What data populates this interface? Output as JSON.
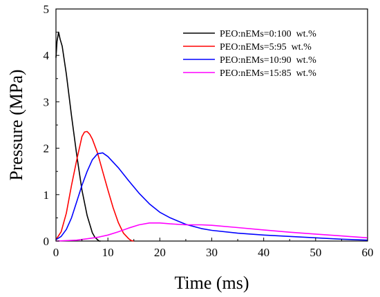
{
  "chart_data": {
    "type": "line",
    "xlabel": "Time (ms)",
    "ylabel": "Pressure (MPa)",
    "xlim": [
      0,
      60
    ],
    "ylim": [
      0,
      5
    ],
    "xticks": [
      0,
      10,
      20,
      30,
      40,
      50,
      60
    ],
    "yticks": [
      0,
      1,
      2,
      3,
      4,
      5
    ],
    "grid": false,
    "legend_position": "top-right",
    "series": [
      {
        "name": "PEO:nEMs=0:100  wt.%",
        "color": "#000000",
        "x": [
          0,
          0.2,
          0.5,
          0.8,
          1.2,
          2,
          3,
          4,
          5,
          6,
          7,
          7.5,
          8,
          8.3,
          8.6
        ],
        "y": [
          3.95,
          4.3,
          4.5,
          4.35,
          4.2,
          3.6,
          2.7,
          1.85,
          1.1,
          0.55,
          0.18,
          0.08,
          0.03,
          0.0,
          0.0
        ]
      },
      {
        "name": "PEO:nEMs=5:95  wt.%",
        "color": "#ff0000",
        "x": [
          0,
          1,
          2,
          3,
          4,
          5,
          5.5,
          6,
          6.5,
          7,
          8,
          9,
          10,
          11,
          12,
          13,
          14,
          14.5,
          15
        ],
        "y": [
          0.03,
          0.2,
          0.6,
          1.2,
          1.75,
          2.25,
          2.35,
          2.36,
          2.3,
          2.2,
          1.9,
          1.5,
          1.1,
          0.72,
          0.4,
          0.17,
          0.05,
          0.01,
          0.0
        ]
      },
      {
        "name": "PEO:nEMs=10:90  wt.%",
        "color": "#0000ff",
        "x": [
          0,
          1,
          2,
          3,
          4,
          5,
          6,
          7,
          8,
          9,
          10,
          12,
          14,
          16,
          18,
          20,
          22,
          25,
          28,
          30,
          35,
          40,
          45,
          50,
          55,
          60
        ],
        "y": [
          0.03,
          0.1,
          0.25,
          0.5,
          0.85,
          1.2,
          1.5,
          1.75,
          1.88,
          1.9,
          1.82,
          1.58,
          1.3,
          1.03,
          0.8,
          0.62,
          0.5,
          0.36,
          0.27,
          0.23,
          0.17,
          0.13,
          0.1,
          0.07,
          0.04,
          0.02
        ]
      },
      {
        "name": "PEO:nEMs=15:85  wt.%",
        "color": "#ff00ff",
        "x": [
          0,
          4,
          8,
          10,
          12,
          14,
          16,
          18,
          20,
          22,
          25,
          28,
          30,
          35,
          40,
          45,
          50,
          55,
          60
        ],
        "y": [
          0.0,
          0.02,
          0.08,
          0.13,
          0.2,
          0.28,
          0.35,
          0.39,
          0.39,
          0.37,
          0.35,
          0.35,
          0.34,
          0.29,
          0.24,
          0.19,
          0.15,
          0.11,
          0.07
        ]
      }
    ]
  }
}
